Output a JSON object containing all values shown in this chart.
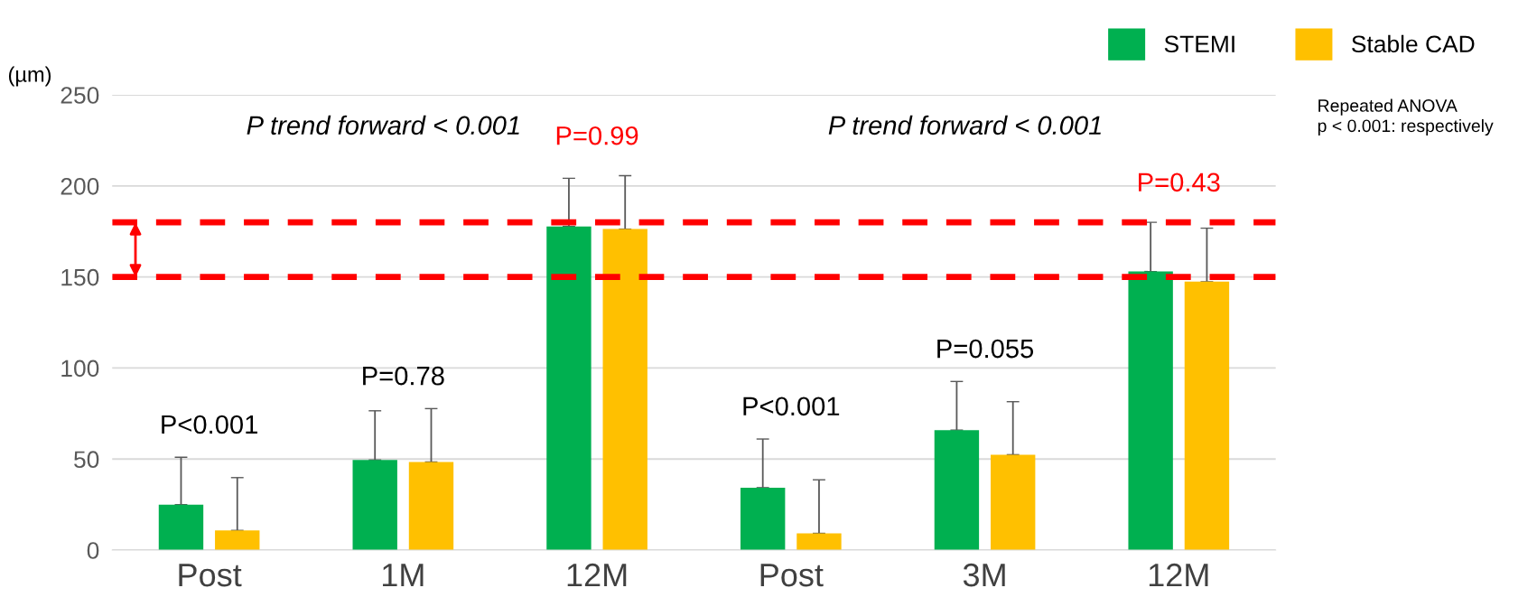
{
  "chart_data": {
    "type": "bar",
    "ylabel": "(µm)",
    "categories": [
      "Post",
      "1M",
      "12M",
      "Post",
      "3M",
      "12M"
    ],
    "series": [
      {
        "name": "STEMI",
        "color": "#00b050",
        "values": [
          25,
          49.5,
          177.7,
          34.3,
          65.9,
          153
        ],
        "errors": [
          [
            25,
            51
          ],
          [
            49.5,
            76.5
          ],
          [
            177.7,
            204.2
          ],
          [
            34.3,
            61
          ],
          [
            65.9,
            92.6
          ],
          [
            153,
            180
          ]
        ]
      },
      {
        "name": "Stable CAD",
        "color": "#ffc000",
        "values": [
          10.8,
          48.4,
          176.3,
          9.2,
          52.4,
          147.4
        ],
        "errors": [
          [
            10.8,
            39.8
          ],
          [
            48.4,
            77.7
          ],
          [
            176.3,
            205.6
          ],
          [
            9.2,
            38.6
          ],
          [
            52.4,
            81.5
          ],
          [
            147.4,
            176.8
          ]
        ]
      }
    ],
    "ylim": [
      0,
      250
    ],
    "yticks": [
      0,
      50,
      100,
      150,
      200,
      250
    ],
    "grid": "y",
    "legend": "top right",
    "ref_lines": [
      {
        "axis": "y",
        "value": 180,
        "color": "#ff0000",
        "line_style": "dashed"
      },
      {
        "axis": "y",
        "value": 150,
        "color": "#ff0000",
        "line_style": "dashed"
      }
    ],
    "annotations": [
      "P<0.001",
      "P=0.78",
      "P=0.99",
      "P<0.001",
      "P=0.055",
      "P=0.43",
      "P trend forward < 0.001",
      "P trend forward < 0.001",
      "Repeated ANOVA\np < 0.001: respectively"
    ]
  }
}
